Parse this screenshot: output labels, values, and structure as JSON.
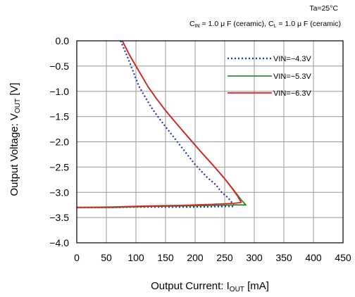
{
  "chart_data": {
    "type": "line",
    "annotations": [
      "Ta=25°C",
      "C_IN = 1.0 μF (ceramic), C_L = 1.0 μF (ceramic)"
    ],
    "annotation_parts": {
      "ta": "Ta=25°C",
      "cin_c": "C",
      "cin_sub": "IN",
      "cin_val": " = 1.0 μ F (ceramic), ",
      "cl_c": "C",
      "cl_sub": "L",
      "cl_val": " = 1.0 μ F (ceramic)"
    },
    "xlabel": "Output Current: I_OUT [mA]",
    "ylabel": "Output Voltage: V_OUT [V]",
    "xlabel_parts": {
      "main": "Output Current: I",
      "sub": "OUT",
      "unit": " [mA]"
    },
    "ylabel_parts": {
      "main": "Output Voltage: V",
      "sub": "OUT",
      "unit": " [V]"
    },
    "xlim": [
      0,
      450
    ],
    "ylim": [
      -4.0,
      0.0
    ],
    "x_ticks": [
      0,
      50,
      100,
      150,
      200,
      250,
      300,
      350,
      400,
      450
    ],
    "x_tick_labels": [
      "0",
      "50",
      "100",
      "150",
      "200",
      "250",
      "300",
      "350",
      "400",
      "450"
    ],
    "y_ticks": [
      0.0,
      -0.5,
      -1.0,
      -1.5,
      -2.0,
      -2.5,
      -3.0,
      -3.5,
      -4.0
    ],
    "y_tick_labels": [
      "0.0",
      "−0.5",
      "−1.0",
      "−1.5",
      "−2.0",
      "−2.5",
      "−3.0",
      "−3.5",
      "−4.0"
    ],
    "grid": true,
    "legend_position": "top-right",
    "series": [
      {
        "name": "VIN=−4.3V",
        "color": "#1f2fbf",
        "style": "dotted",
        "x": [
          74,
          85,
          95,
          105,
          115,
          125,
          140,
          160,
          180,
          200,
          220,
          235,
          245,
          250,
          255,
          262,
          266,
          266,
          250,
          200,
          150,
          100,
          60,
          0
        ],
        "y": [
          0.0,
          -0.3,
          -0.6,
          -0.9,
          -1.1,
          -1.3,
          -1.55,
          -1.85,
          -2.15,
          -2.45,
          -2.7,
          -2.85,
          -3.0,
          -3.05,
          -3.1,
          -3.2,
          -3.27,
          -3.28,
          -3.28,
          -3.29,
          -3.29,
          -3.29,
          -3.3,
          -3.3
        ]
      },
      {
        "name": "VIN=−5.3V",
        "color": "#2e8b2e",
        "style": "solid",
        "x": [
          77,
          90,
          100,
          110,
          120,
          135,
          150,
          170,
          190,
          210,
          230,
          250,
          265,
          278,
          286,
          270,
          230,
          180,
          120,
          60,
          0
        ],
        "y": [
          0.0,
          -0.3,
          -0.5,
          -0.7,
          -0.9,
          -1.15,
          -1.38,
          -1.66,
          -1.93,
          -2.2,
          -2.46,
          -2.73,
          -2.95,
          -3.15,
          -3.25,
          -3.25,
          -3.26,
          -3.27,
          -3.28,
          -3.3,
          -3.3
        ]
      },
      {
        "name": "VIN=−6.3V",
        "color": "#e02020",
        "style": "solid",
        "x": [
          77,
          90,
          100,
          110,
          120,
          135,
          150,
          170,
          190,
          210,
          230,
          250,
          263,
          272,
          278,
          265,
          225,
          175,
          120,
          60,
          0
        ],
        "y": [
          0.0,
          -0.3,
          -0.5,
          -0.7,
          -0.9,
          -1.15,
          -1.38,
          -1.66,
          -1.93,
          -2.2,
          -2.46,
          -2.73,
          -2.93,
          -3.08,
          -3.2,
          -3.22,
          -3.24,
          -3.26,
          -3.27,
          -3.29,
          -3.3
        ]
      }
    ]
  }
}
